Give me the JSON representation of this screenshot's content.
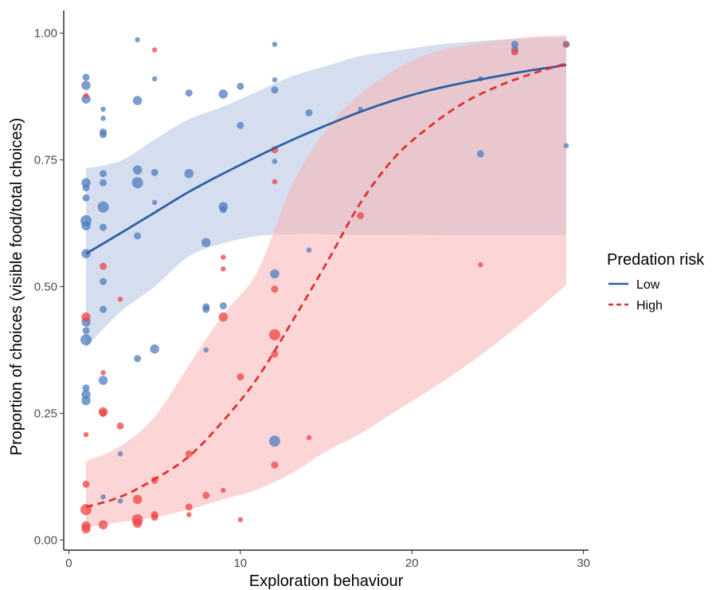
{
  "chart_data": {
    "type": "scatter",
    "xlabel": "Exploration behaviour",
    "ylabel": "Proportion of choices (visible food/total choices)",
    "xlim": [
      -0.3,
      30.3
    ],
    "ylim": [
      -0.02,
      1.045
    ],
    "x_ticks": [
      0,
      10,
      20,
      30
    ],
    "y_ticks": [
      0,
      0.25,
      0.5,
      0.75,
      1.0
    ],
    "x_tick_labels": [
      "0",
      "10",
      "20",
      "30"
    ],
    "y_tick_labels": [
      "0.00",
      "0.25",
      "0.50",
      "0.75",
      "1.00"
    ],
    "grid": false,
    "legend": {
      "title": "Predation risk",
      "position": "right",
      "entries": [
        {
          "label": "Low",
          "color": "#2e5fa3",
          "linestyle": "solid"
        },
        {
          "label": "High",
          "color": "#e03030",
          "linestyle": "dashed"
        }
      ]
    },
    "series": [
      {
        "name": "Low",
        "color": "#2e5fa3",
        "point_color": "#4f7cbf",
        "band_color": "#9fb6d9",
        "fit": {
          "x": [
            1,
            3,
            5,
            7,
            9,
            11,
            13,
            15,
            17,
            19,
            21,
            23,
            25,
            27,
            29
          ],
          "y": [
            0.565,
            0.605,
            0.646,
            0.687,
            0.723,
            0.757,
            0.789,
            0.818,
            0.845,
            0.868,
            0.887,
            0.902,
            0.915,
            0.927,
            0.937
          ]
        },
        "ci_upper": {
          "x": [
            1,
            3,
            5,
            7,
            9,
            11,
            13,
            15,
            17,
            19,
            21,
            23,
            25,
            27,
            29
          ],
          "y": [
            0.733,
            0.748,
            0.79,
            0.83,
            0.855,
            0.885,
            0.915,
            0.935,
            0.955,
            0.965,
            0.975,
            0.982,
            0.987,
            0.99,
            0.992
          ]
        },
        "ci_lower": {
          "x": [
            1,
            3,
            5,
            7,
            9,
            11,
            13,
            15,
            17,
            19,
            21,
            23,
            25,
            27,
            29
          ],
          "y": [
            0.38,
            0.45,
            0.5,
            0.56,
            0.585,
            0.6,
            0.603,
            0.603,
            0.602,
            0.602,
            0.602,
            0.601,
            0.601,
            0.601,
            0.601
          ]
        },
        "points": [
          {
            "x": 1,
            "y": 0.913,
            "s": 2
          },
          {
            "x": 1,
            "y": 0.897,
            "s": 3
          },
          {
            "x": 1,
            "y": 0.87,
            "s": 3
          },
          {
            "x": 1,
            "y": 0.705,
            "s": 3
          },
          {
            "x": 1,
            "y": 0.695,
            "s": 2
          },
          {
            "x": 1,
            "y": 0.675,
            "s": 2
          },
          {
            "x": 1,
            "y": 0.63,
            "s": 4
          },
          {
            "x": 1,
            "y": 0.62,
            "s": 3
          },
          {
            "x": 1,
            "y": 0.565,
            "s": 3
          },
          {
            "x": 1,
            "y": 0.43,
            "s": 3
          },
          {
            "x": 1,
            "y": 0.413,
            "s": 2
          },
          {
            "x": 1,
            "y": 0.395,
            "s": 4
          },
          {
            "x": 1,
            "y": 0.3,
            "s": 2
          },
          {
            "x": 1,
            "y": 0.287,
            "s": 3
          },
          {
            "x": 1,
            "y": 0.275,
            "s": 3
          },
          {
            "x": 2,
            "y": 0.85,
            "s": 1
          },
          {
            "x": 2,
            "y": 0.832,
            "s": 1
          },
          {
            "x": 2,
            "y": 0.805,
            "s": 2
          },
          {
            "x": 2,
            "y": 0.8,
            "s": 2
          },
          {
            "x": 2,
            "y": 0.723,
            "s": 2
          },
          {
            "x": 2,
            "y": 0.705,
            "s": 2
          },
          {
            "x": 2,
            "y": 0.657,
            "s": 4
          },
          {
            "x": 2,
            "y": 0.617,
            "s": 2
          },
          {
            "x": 2,
            "y": 0.51,
            "s": 2
          },
          {
            "x": 2,
            "y": 0.455,
            "s": 2
          },
          {
            "x": 2,
            "y": 0.315,
            "s": 3
          },
          {
            "x": 2,
            "y": 0.085,
            "s": 1
          },
          {
            "x": 3,
            "y": 0.17,
            "s": 1
          },
          {
            "x": 3,
            "y": 0.077,
            "s": 1
          },
          {
            "x": 4,
            "y": 0.987,
            "s": 1
          },
          {
            "x": 4,
            "y": 0.867,
            "s": 3
          },
          {
            "x": 4,
            "y": 0.73,
            "s": 3
          },
          {
            "x": 4,
            "y": 0.705,
            "s": 4
          },
          {
            "x": 4,
            "y": 0.6,
            "s": 2
          },
          {
            "x": 4,
            "y": 0.358,
            "s": 2
          },
          {
            "x": 5,
            "y": 0.91,
            "s": 1
          },
          {
            "x": 5,
            "y": 0.725,
            "s": 2
          },
          {
            "x": 5,
            "y": 0.666,
            "s": 1
          },
          {
            "x": 5,
            "y": 0.377,
            "s": 3
          },
          {
            "x": 7,
            "y": 0.882,
            "s": 2
          },
          {
            "x": 7,
            "y": 0.723,
            "s": 3
          },
          {
            "x": 8,
            "y": 0.587,
            "s": 3
          },
          {
            "x": 8,
            "y": 0.46,
            "s": 2
          },
          {
            "x": 8,
            "y": 0.455,
            "s": 2
          },
          {
            "x": 8,
            "y": 0.375,
            "s": 1
          },
          {
            "x": 9,
            "y": 0.88,
            "s": 3
          },
          {
            "x": 9,
            "y": 0.658,
            "s": 3
          },
          {
            "x": 9,
            "y": 0.652,
            "s": 2
          },
          {
            "x": 9,
            "y": 0.462,
            "s": 2
          },
          {
            "x": 10,
            "y": 0.895,
            "s": 2
          },
          {
            "x": 10,
            "y": 0.818,
            "s": 2
          },
          {
            "x": 12,
            "y": 0.978,
            "s": 1
          },
          {
            "x": 12,
            "y": 0.908,
            "s": 1
          },
          {
            "x": 12,
            "y": 0.888,
            "s": 2
          },
          {
            "x": 12,
            "y": 0.747,
            "s": 1
          },
          {
            "x": 12,
            "y": 0.525,
            "s": 3
          },
          {
            "x": 12,
            "y": 0.195,
            "s": 4
          },
          {
            "x": 14,
            "y": 0.843,
            "s": 2
          },
          {
            "x": 14,
            "y": 0.572,
            "s": 1
          },
          {
            "x": 17,
            "y": 0.85,
            "s": 1
          },
          {
            "x": 24,
            "y": 0.91,
            "s": 1
          },
          {
            "x": 24,
            "y": 0.762,
            "s": 2
          },
          {
            "x": 26,
            "y": 0.978,
            "s": 2
          },
          {
            "x": 26,
            "y": 0.968,
            "s": 2
          },
          {
            "x": 29,
            "y": 0.978,
            "s": 2
          },
          {
            "x": 29,
            "y": 0.778,
            "s": 1
          }
        ]
      },
      {
        "name": "High",
        "color": "#e03030",
        "point_color": "#ee4444",
        "band_color": "#f9b4b4",
        "fit": {
          "x": [
            1,
            3,
            5,
            7,
            9,
            11,
            13,
            15,
            17,
            19,
            21,
            23,
            25,
            27,
            29
          ],
          "y": [
            0.065,
            0.085,
            0.12,
            0.165,
            0.235,
            0.32,
            0.43,
            0.545,
            0.665,
            0.755,
            0.815,
            0.862,
            0.895,
            0.92,
            0.94
          ]
        },
        "ci_upper": {
          "x": [
            1,
            3,
            5,
            7,
            9,
            11,
            13,
            15,
            17,
            19,
            21,
            23,
            25,
            27,
            29
          ],
          "y": [
            0.155,
            0.185,
            0.243,
            0.345,
            0.445,
            0.53,
            0.7,
            0.81,
            0.88,
            0.928,
            0.96,
            0.975,
            0.985,
            0.993,
            0.996
          ]
        },
        "ci_lower": {
          "x": [
            1,
            3,
            5,
            7,
            9,
            11,
            13,
            15,
            17,
            19,
            21,
            23,
            25,
            27,
            29
          ],
          "y": [
            0.025,
            0.035,
            0.045,
            0.06,
            0.08,
            0.1,
            0.132,
            0.175,
            0.21,
            0.253,
            0.295,
            0.34,
            0.39,
            0.445,
            0.503
          ]
        },
        "points": [
          {
            "x": 1,
            "y": 0.877,
            "s": 1
          },
          {
            "x": 1,
            "y": 0.44,
            "s": 3
          },
          {
            "x": 1,
            "y": 0.208,
            "s": 1
          },
          {
            "x": 1,
            "y": 0.11,
            "s": 2
          },
          {
            "x": 1,
            "y": 0.06,
            "s": 4
          },
          {
            "x": 1,
            "y": 0.028,
            "s": 3
          },
          {
            "x": 1,
            "y": 0.022,
            "s": 3
          },
          {
            "x": 2,
            "y": 0.54,
            "s": 2
          },
          {
            "x": 2,
            "y": 0.33,
            "s": 1
          },
          {
            "x": 2,
            "y": 0.253,
            "s": 3
          },
          {
            "x": 2,
            "y": 0.25,
            "s": 2
          },
          {
            "x": 2,
            "y": 0.03,
            "s": 3
          },
          {
            "x": 3,
            "y": 0.475,
            "s": 1
          },
          {
            "x": 3,
            "y": 0.225,
            "s": 2
          },
          {
            "x": 4,
            "y": 0.08,
            "s": 3
          },
          {
            "x": 4,
            "y": 0.04,
            "s": 4
          },
          {
            "x": 4,
            "y": 0.033,
            "s": 3
          },
          {
            "x": 5,
            "y": 0.967,
            "s": 1
          },
          {
            "x": 5,
            "y": 0.118,
            "s": 2
          },
          {
            "x": 5,
            "y": 0.05,
            "s": 2
          },
          {
            "x": 5,
            "y": 0.045,
            "s": 2
          },
          {
            "x": 7,
            "y": 0.17,
            "s": 2
          },
          {
            "x": 7,
            "y": 0.065,
            "s": 2
          },
          {
            "x": 7,
            "y": 0.05,
            "s": 1
          },
          {
            "x": 8,
            "y": 0.088,
            "s": 2
          },
          {
            "x": 9,
            "y": 0.558,
            "s": 1
          },
          {
            "x": 9,
            "y": 0.535,
            "s": 1
          },
          {
            "x": 9,
            "y": 0.44,
            "s": 3
          },
          {
            "x": 9,
            "y": 0.098,
            "s": 1
          },
          {
            "x": 10,
            "y": 0.322,
            "s": 2
          },
          {
            "x": 10,
            "y": 0.04,
            "s": 1
          },
          {
            "x": 12,
            "y": 0.77,
            "s": 2
          },
          {
            "x": 12,
            "y": 0.707,
            "s": 1
          },
          {
            "x": 12,
            "y": 0.495,
            "s": 2
          },
          {
            "x": 12,
            "y": 0.405,
            "s": 4
          },
          {
            "x": 12,
            "y": 0.367,
            "s": 2
          },
          {
            "x": 12,
            "y": 0.148,
            "s": 2
          },
          {
            "x": 14,
            "y": 0.202,
            "s": 1
          },
          {
            "x": 17,
            "y": 0.64,
            "s": 2
          },
          {
            "x": 24,
            "y": 0.543,
            "s": 1
          },
          {
            "x": 26,
            "y": 0.963,
            "s": 2
          },
          {
            "x": 29,
            "y": 0.978,
            "s": 1
          }
        ]
      }
    ]
  }
}
